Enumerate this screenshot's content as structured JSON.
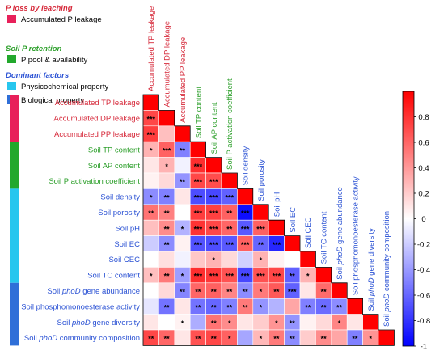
{
  "legend": {
    "groups": [
      {
        "heading": "P loss by leaching",
        "heading_color": "#d62839",
        "items": [
          {
            "label": "Accumulated P leakage",
            "color": "#e8205a"
          }
        ]
      },
      {
        "heading": "Soil P retention",
        "heading_color": "#2ea02c",
        "items": [
          {
            "label": "P pool & availability",
            "color": "#22a82c"
          }
        ]
      },
      {
        "heading": "Dominant factors",
        "heading_color": "#2b52d4",
        "items": [
          {
            "label": "Physicochemical property",
            "color": "#27c6ee"
          },
          {
            "label": "Biological property",
            "color": "#2f6fd8"
          }
        ]
      }
    ]
  },
  "group_bar_colors": [
    "#e8205a",
    "#22a82c",
    "#27c6ee",
    "#2f6fd8"
  ],
  "colorbar": {
    "ticks": [
      "0.8",
      "0.6",
      "0.4",
      "0.2",
      "0",
      "-0.2",
      "-0.4",
      "-0.6",
      "-0.8",
      "-1"
    ]
  },
  "chart_data": {
    "type": "heatmap",
    "triangle": "lower",
    "range": [
      -1,
      1
    ],
    "colormap": [
      "#0000ff",
      "#ffffff",
      "#ff0000"
    ],
    "variables": [
      {
        "segs": [
          {
            "t": "Accumulated TP leakage"
          }
        ],
        "group": 0
      },
      {
        "segs": [
          {
            "t": "Accumulated DP leakage"
          }
        ],
        "group": 0
      },
      {
        "segs": [
          {
            "t": "Accumulated PP leakage"
          }
        ],
        "group": 0
      },
      {
        "segs": [
          {
            "t": "Soil TP content"
          }
        ],
        "group": 1
      },
      {
        "segs": [
          {
            "t": "Soil AP content"
          }
        ],
        "group": 1
      },
      {
        "segs": [
          {
            "t": "Soil P activation coefficient"
          }
        ],
        "group": 1
      },
      {
        "segs": [
          {
            "t": "Soil density"
          }
        ],
        "group": 2
      },
      {
        "segs": [
          {
            "t": "Soil porosity"
          }
        ],
        "group": 2
      },
      {
        "segs": [
          {
            "t": "Soil pH"
          }
        ],
        "group": 2
      },
      {
        "segs": [
          {
            "t": "Soil EC"
          }
        ],
        "group": 2
      },
      {
        "segs": [
          {
            "t": "Soil CEC"
          }
        ],
        "group": 2
      },
      {
        "segs": [
          {
            "t": "Soil TC content"
          }
        ],
        "group": 2
      },
      {
        "segs": [
          {
            "t": "Soil "
          },
          {
            "t": "phoD",
            "i": true
          },
          {
            "t": " gene abundance"
          }
        ],
        "group": 3
      },
      {
        "segs": [
          {
            "t": "Soil phosphomonoesterase activity"
          }
        ],
        "group": 3
      },
      {
        "segs": [
          {
            "t": "Soil "
          },
          {
            "t": "phoD",
            "i": true
          },
          {
            "t": " gene diversity"
          }
        ],
        "group": 3
      },
      {
        "segs": [
          {
            "t": "Soil "
          },
          {
            "t": "phoD",
            "i": true
          },
          {
            "t": " community composition"
          }
        ],
        "group": 3
      }
    ],
    "group_label_colors": [
      "#d62839",
      "#2ea02c",
      "#2b52d4",
      "#2b52d4"
    ],
    "values": [
      [
        1
      ],
      [
        0.72,
        1
      ],
      [
        0.76,
        0.25,
        1
      ],
      [
        0.3,
        0.62,
        -0.5,
        1
      ],
      [
        0.1,
        0.3,
        -0.05,
        0.82,
        1
      ],
      [
        0.05,
        0.15,
        -0.42,
        0.72,
        0.7,
        1
      ],
      [
        -0.45,
        -0.5,
        0.1,
        -0.7,
        -0.72,
        -0.62,
        1
      ],
      [
        0.55,
        0.5,
        0.0,
        0.76,
        0.75,
        0.62,
        -0.95,
        1
      ],
      [
        0.25,
        0.45,
        -0.3,
        0.8,
        0.72,
        0.6,
        -0.65,
        0.62,
        1
      ],
      [
        -0.2,
        -0.45,
        0.05,
        -0.68,
        -0.7,
        -0.65,
        0.62,
        -0.6,
        -0.85,
        1
      ],
      [
        0.0,
        0.12,
        -0.05,
        0.22,
        0.3,
        0.15,
        -0.18,
        0.3,
        0.05,
        0.0,
        1
      ],
      [
        0.25,
        0.52,
        -0.38,
        0.82,
        0.78,
        0.68,
        -0.72,
        0.68,
        0.72,
        -0.62,
        0.3,
        1
      ],
      [
        0.0,
        0.15,
        -0.48,
        0.6,
        0.62,
        0.48,
        -0.45,
        0.52,
        0.65,
        -0.62,
        0.1,
        0.58,
        1
      ],
      [
        -0.1,
        -0.55,
        0.1,
        -0.55,
        -0.6,
        -0.5,
        0.52,
        -0.42,
        -0.3,
        0.35,
        -0.5,
        -0.58,
        -0.45,
        1
      ],
      [
        0.1,
        0.0,
        0.05,
        -0.32,
        0.55,
        0.45,
        0.1,
        0.2,
        0.42,
        -0.42,
        0.05,
        0.15,
        0.48,
        0.1,
        1
      ],
      [
        0.72,
        0.6,
        0.1,
        0.68,
        0.72,
        0.62,
        -0.35,
        0.28,
        0.52,
        -0.45,
        0.2,
        0.45,
        0.35,
        -0.5,
        0.42,
        1
      ]
    ],
    "significance": [
      [
        ""
      ],
      [
        "***",
        ""
      ],
      [
        "***",
        "",
        ""
      ],
      [
        "*",
        "***",
        "**",
        ""
      ],
      [
        "",
        "*",
        "",
        "***",
        ""
      ],
      [
        "",
        "",
        "**",
        "***",
        "***",
        ""
      ],
      [
        "*",
        "**",
        "",
        "***",
        "***",
        "***",
        ""
      ],
      [
        "**",
        "**",
        "",
        "***",
        "***",
        "**",
        "***",
        ""
      ],
      [
        "",
        "**",
        "*",
        "***",
        "***",
        "**",
        "***",
        "***",
        ""
      ],
      [
        "",
        "**",
        "",
        "***",
        "***",
        "***",
        "***",
        "**",
        "***",
        ""
      ],
      [
        "",
        "",
        "",
        "",
        "*",
        "",
        "",
        "*",
        "",
        "",
        ""
      ],
      [
        "*",
        "**",
        "*",
        "***",
        "***",
        "***",
        "***",
        "***",
        "***",
        "**",
        "*",
        ""
      ],
      [
        "",
        "",
        "**",
        "**",
        "**",
        "**",
        "**",
        "*",
        "**",
        "***",
        "",
        "**",
        ""
      ],
      [
        "",
        "**",
        "",
        "**",
        "**",
        "**",
        "**",
        "*",
        "",
        "",
        "**",
        "**",
        "**",
        ""
      ],
      [
        "",
        "",
        "*",
        "",
        "**",
        "*",
        "",
        "",
        "*",
        "**",
        "",
        "",
        "*",
        "",
        ""
      ],
      [
        "**",
        "**",
        "",
        "**",
        "**",
        "*",
        "",
        "*",
        "**",
        "**",
        "",
        "**",
        "",
        "**",
        "*",
        ""
      ]
    ]
  }
}
